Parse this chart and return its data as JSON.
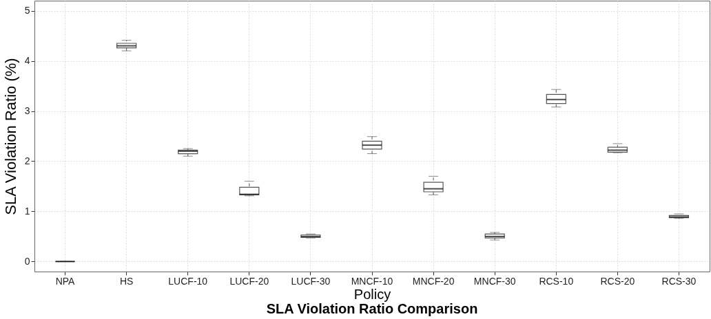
{
  "chart_data": {
    "type": "box",
    "title": "SLA Violation Ratio Comparison",
    "xlabel": "Policy",
    "ylabel": "SLA Violation Ratio (%)",
    "categories": [
      "NPA",
      "HS",
      "LUCF-10",
      "LUCF-20",
      "LUCF-30",
      "MNCF-10",
      "MNCF-20",
      "MNCF-30",
      "RCS-10",
      "RCS-20",
      "RCS-30"
    ],
    "boxes": [
      {
        "low": 0,
        "q1": 0,
        "median": 0,
        "q3": 0,
        "high": 0
      },
      {
        "low": 4.2,
        "q1": 4.26,
        "median": 4.3,
        "q3": 4.35,
        "high": 4.41
      },
      {
        "low": 2.1,
        "q1": 2.15,
        "median": 2.2,
        "q3": 2.22,
        "high": 2.25
      },
      {
        "low": 1.31,
        "q1": 1.33,
        "median": 1.34,
        "q3": 1.48,
        "high": 1.6
      },
      {
        "low": 0.47,
        "q1": 0.48,
        "median": 0.5,
        "q3": 0.53,
        "high": 0.55
      },
      {
        "low": 2.15,
        "q1": 2.24,
        "median": 2.32,
        "q3": 2.4,
        "high": 2.49
      },
      {
        "low": 1.33,
        "q1": 1.39,
        "median": 1.45,
        "q3": 1.58,
        "high": 1.7
      },
      {
        "low": 0.43,
        "q1": 0.47,
        "median": 0.5,
        "q3": 0.55,
        "high": 0.58
      },
      {
        "low": 3.08,
        "q1": 3.15,
        "median": 3.23,
        "q3": 3.33,
        "high": 3.43
      },
      {
        "low": 2.17,
        "q1": 2.18,
        "median": 2.22,
        "q3": 2.28,
        "high": 2.35
      },
      {
        "low": 0.86,
        "q1": 0.875,
        "median": 0.89,
        "q3": 0.92,
        "high": 0.95
      }
    ],
    "color": "#555555",
    "ylim": [
      -0.2,
      5.2
    ],
    "yticks": [
      0,
      1,
      2,
      3,
      4,
      5
    ],
    "grid": true
  }
}
